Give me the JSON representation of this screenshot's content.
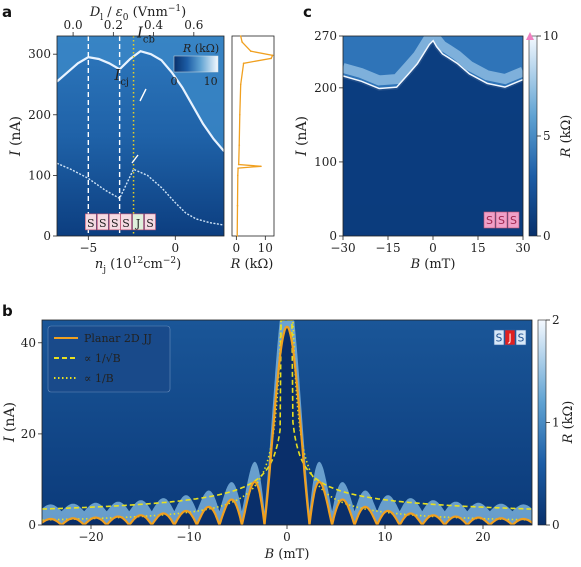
{
  "chart_data": [
    {
      "panel": "a",
      "type": "heatmap",
      "xlabel": "n_j (10^12 cm^-2)",
      "x_ticks": [
        -5,
        0
      ],
      "xlim": [
        -6.8,
        2.8
      ],
      "top_axis_label": "D_l / ε_0 (Vnm^-1)",
      "top_ticks": [
        0.0,
        0.2,
        0.4,
        0.6
      ],
      "ylabel": "I (nA)",
      "y_ticks": [
        0,
        100,
        200,
        300
      ],
      "ylim": [
        0,
        330
      ],
      "colorbar_label": "R (kΩ)",
      "colorbar_ticks": [
        0,
        10
      ],
      "annotations": [
        "I_cb",
        "I_cj"
      ],
      "region_labels": [
        {
          "text": "SSS",
          "x": -5.0
        },
        {
          "text": "SJS",
          "x": -2.4
        }
      ],
      "dashed_lines_x": [
        -5.0,
        -3.2
      ],
      "dotted_line_x": -2.4,
      "critical_current_boundary": {
        "x": [
          -6.8,
          -6.2,
          -5.6,
          -5.0,
          -4.4,
          -3.8,
          -3.2,
          -2.6,
          -2.0,
          -1.4,
          -0.8,
          -0.2,
          0.4,
          1.0,
          1.6,
          2.2,
          2.8
        ],
        "y": [
          255,
          270,
          285,
          295,
          292,
          285,
          275,
          292,
          305,
          300,
          290,
          270,
          245,
          215,
          185,
          160,
          140
        ]
      },
      "junction_boundary": {
        "x": [
          -6.8,
          -6.0,
          -5.0,
          -4.0,
          -3.2,
          -2.4,
          -1.6,
          -0.8,
          0.0,
          0.6,
          1.2,
          2.0,
          2.8
        ],
        "y": [
          120,
          110,
          95,
          75,
          62,
          110,
          100,
          80,
          55,
          38,
          28,
          22,
          18
        ]
      }
    },
    {
      "panel": "a-side",
      "type": "line",
      "xlabel": "R (kΩ)",
      "x_ticks": [
        0,
        10
      ],
      "xlim": [
        -1.5,
        13
      ],
      "ylim": [
        0,
        330
      ],
      "series": [
        {
          "color": "#f0a020",
          "points": [
            [
              0.3,
              0
            ],
            [
              0.4,
              50
            ],
            [
              0.5,
              100
            ],
            [
              0.6,
              112
            ],
            [
              8.5,
              115
            ],
            [
              0.8,
              118
            ],
            [
              1.0,
              150
            ],
            [
              1.2,
              200
            ],
            [
              1.5,
              250
            ],
            [
              2.5,
              285
            ],
            [
              12.0,
              293
            ],
            [
              12.5,
              298
            ],
            [
              5.0,
              305
            ],
            [
              2.0,
              320
            ],
            [
              1.5,
              330
            ]
          ]
        }
      ]
    },
    {
      "panel": "c",
      "type": "heatmap",
      "xlabel": "B (mT)",
      "x_ticks": [
        -30,
        -15,
        0,
        15,
        30
      ],
      "xlim": [
        -30,
        30
      ],
      "ylabel": "I (nA)",
      "y_ticks": [
        0,
        100,
        200,
        270
      ],
      "ylim": [
        0,
        270
      ],
      "colorbar_label": "R (kΩ)",
      "colorbar_ticks": [
        0,
        5,
        10
      ],
      "region_labels": [
        {
          "text": "SSS"
        }
      ],
      "boundary": {
        "x": [
          -30,
          -24,
          -18,
          -12,
          -8,
          -5,
          -3,
          -1,
          0,
          1,
          3,
          5,
          8,
          12,
          18,
          24,
          30
        ],
        "y": [
          215,
          208,
          198,
          200,
          218,
          232,
          245,
          258,
          262,
          255,
          245,
          240,
          232,
          218,
          205,
          200,
          210
        ]
      }
    },
    {
      "panel": "b",
      "type": "heatmap",
      "xlabel": "B (mT)",
      "x_ticks": [
        -20,
        -10,
        0,
        10,
        20
      ],
      "xlim": [
        -25,
        25
      ],
      "ylabel": "I (nA)",
      "y_ticks": [
        0,
        20,
        40
      ],
      "ylim": [
        0,
        45
      ],
      "colorbar_label": "R (kΩ)",
      "colorbar_ticks": [
        0,
        1,
        2
      ],
      "region_labels": [
        {
          "text": "SJS"
        }
      ],
      "legend": {
        "position": "top-left",
        "entries": [
          {
            "label": "Planar 2D JJ",
            "style": "solid",
            "color": "#f0a020"
          },
          {
            "label": "∝ 1/√B",
            "style": "dashed",
            "color": "#e8e020"
          },
          {
            "label": "∝ 1/B",
            "style": "dotted",
            "color": "#e8e020"
          }
        ]
      },
      "fraunhofer": {
        "Ic0": 43.5,
        "period_mT": 2.3
      },
      "sqrt_fit": {
        "coefficient": 35
      },
      "inv_fit": {
        "coefficient": 28
      }
    }
  ]
}
